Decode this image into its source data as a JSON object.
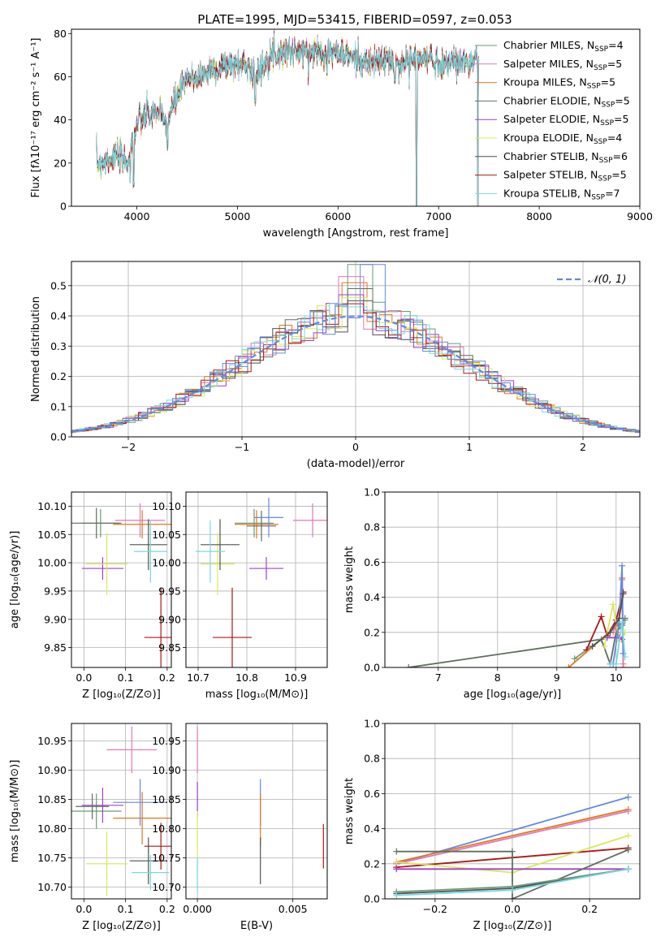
{
  "figure_title": "PLATE=1995, MJD=53415, FIBERID=0597, z=0.053",
  "colors": {
    "Chabrier MILES": "#6a9a78",
    "Salpeter MILES": "#e07ab4",
    "Kroupa MILES": "#e0781e",
    "Chabrier ELODIE": "#5f6f5f",
    "Salpeter ELODIE": "#a040c8",
    "Kroupa ELODIE": "#d8e85a",
    "Chabrier STELIB": "#505050",
    "Salpeter STELIB": "#aa1818",
    "Kroupa STELIB": "#7ad8e0",
    "blue": "#6688dd",
    "grid": "#b0b0b0"
  },
  "chart_data": [
    {
      "id": "spectrum",
      "type": "line",
      "xlabel": "wavelength [Angstrom, rest frame]",
      "ylabel": "Flux [fλ10⁻¹⁷ erg cm⁻² s⁻¹ A⁻¹]",
      "xlim": [
        3350,
        9000
      ],
      "ylim": [
        0,
        82
      ],
      "xticks": [
        4000,
        5000,
        6000,
        7000,
        8000,
        9000
      ],
      "yticks": [
        0,
        20,
        40,
        60,
        80
      ],
      "wavelength_range": [
        3600,
        7400
      ],
      "continuum": [
        [
          3600,
          20
        ],
        [
          3800,
          23
        ],
        [
          3900,
          20
        ],
        [
          4000,
          38
        ],
        [
          4100,
          42
        ],
        [
          4200,
          44
        ],
        [
          4300,
          38
        ],
        [
          4400,
          52
        ],
        [
          4500,
          58
        ],
        [
          4600,
          60
        ],
        [
          4800,
          64
        ],
        [
          5000,
          66
        ],
        [
          5100,
          66
        ],
        [
          5200,
          60
        ],
        [
          5300,
          70
        ],
        [
          5500,
          72
        ],
        [
          5700,
          71
        ],
        [
          5800,
          72
        ],
        [
          6000,
          71
        ],
        [
          6200,
          68
        ],
        [
          6300,
          66
        ],
        [
          6500,
          68
        ],
        [
          6560,
          64
        ],
        [
          6700,
          68
        ],
        [
          6900,
          69
        ],
        [
          7000,
          66
        ],
        [
          7200,
          67
        ],
        [
          7400,
          67
        ]
      ],
      "dips": [
        [
          3934,
          12
        ],
        [
          3968,
          10
        ],
        [
          4305,
          28
        ],
        [
          5175,
          48
        ],
        [
          5890,
          62
        ],
        [
          6563,
          58
        ],
        [
          6780,
          0
        ],
        [
          7390,
          0
        ]
      ],
      "legend_position": "upper right",
      "series": [
        {
          "name": "Chabrier MILES",
          "nssp": "4"
        },
        {
          "name": "Salpeter MILES",
          "nssp": "5"
        },
        {
          "name": "Kroupa MILES",
          "nssp": "5"
        },
        {
          "name": "Chabrier ELODIE",
          "nssp": "5"
        },
        {
          "name": "Salpeter ELODIE",
          "nssp": "5"
        },
        {
          "name": "Kroupa ELODIE",
          "nssp": "4"
        },
        {
          "name": "Chabrier STELIB",
          "nssp": "6"
        },
        {
          "name": "Salpeter STELIB",
          "nssp": "5"
        },
        {
          "name": "Kroupa STELIB",
          "nssp": "7"
        }
      ]
    },
    {
      "id": "residuals",
      "type": "histogram",
      "xlabel": "(data-model)/error",
      "ylabel": "Normed distribution",
      "xlim": [
        -2.5,
        2.5
      ],
      "ylim": [
        0,
        0.58
      ],
      "xticks": [
        -2,
        -1,
        0,
        1,
        2
      ],
      "yticks": [
        0.0,
        0.1,
        0.2,
        0.3,
        0.4,
        0.5
      ],
      "bin_width": 0.11,
      "reference_curve": {
        "label": "𝒩(0, 1)",
        "mean": 0,
        "sigma": 1
      },
      "peak_values": [
        0.57,
        0.53,
        0.51,
        0.49,
        0.47,
        0.46,
        0.45,
        0.44,
        0.43
      ]
    },
    {
      "id": "age_vs_Z",
      "type": "errorbar",
      "xlabel": "Z [log₁₀(Z/Z⊙)]",
      "ylabel": "age  [log₁₀(age/yr)]",
      "xlim": [
        -0.03,
        0.21
      ],
      "ylim": [
        9.815,
        10.125
      ],
      "xticks": [
        0.0,
        0.1,
        0.2
      ],
      "yticks": [
        9.85,
        9.9,
        9.95,
        10.0,
        10.05,
        10.1
      ],
      "points": [
        {
          "series": "Chabrier MILES",
          "x": 0.04,
          "xerr": 0.045,
          "y": 10.07,
          "yerr": 0.025
        },
        {
          "series": "Salpeter MILES",
          "x": 0.135,
          "xerr": 0.06,
          "y": 10.075,
          "yerr": 0.03
        },
        {
          "series": "Kroupa MILES",
          "x": 0.14,
          "xerr": 0.07,
          "y": 10.068,
          "yerr": 0.025
        },
        {
          "series": "Chabrier ELODIE",
          "x": 0.03,
          "xerr": 0.06,
          "y": 10.07,
          "yerr": 0.027
        },
        {
          "series": "Salpeter ELODIE",
          "x": 0.045,
          "xerr": 0.05,
          "y": 9.99,
          "yerr": 0.02
        },
        {
          "series": "Kroupa ELODIE",
          "x": 0.055,
          "xerr": 0.05,
          "y": 9.998,
          "yerr": 0.055
        },
        {
          "series": "Chabrier STELIB",
          "x": 0.155,
          "xerr": 0.045,
          "y": 10.032,
          "yerr": 0.045
        },
        {
          "series": "Salpeter STELIB",
          "x": 0.185,
          "xerr": 0.04,
          "y": 9.868,
          "yerr": 0.088
        },
        {
          "series": "Kroupa STELIB",
          "x": 0.16,
          "xerr": 0.04,
          "y": 10.02,
          "yerr": 0.055
        }
      ]
    },
    {
      "id": "age_vs_mass",
      "type": "errorbar",
      "xlabel": "mass [log₁₀(M/M⊙)]",
      "ylabel": "",
      "xlim": [
        10.675,
        10.965
      ],
      "ylim": [
        9.815,
        10.125
      ],
      "xticks": [
        10.7,
        10.8,
        10.9
      ],
      "yticks": [
        9.85,
        9.9,
        9.95,
        10.0,
        10.05,
        10.1
      ],
      "points": [
        {
          "series": "Chabrier MILES",
          "x": 10.815,
          "xerr": 0.04,
          "y": 10.07,
          "yerr": 0.025
        },
        {
          "series": "Salpeter MILES",
          "x": 10.935,
          "xerr": 0.04,
          "y": 10.075,
          "yerr": 0.03
        },
        {
          "series": "Kroupa MILES",
          "x": 10.82,
          "xerr": 0.045,
          "y": 10.068,
          "yerr": 0.025
        },
        {
          "series": "Chabrier ELODIE",
          "x": 10.83,
          "xerr": 0.03,
          "y": 10.065,
          "yerr": 0.027
        },
        {
          "series": "Salpeter ELODIE",
          "x": 10.84,
          "xerr": 0.035,
          "y": 9.99,
          "yerr": 0.02
        },
        {
          "series": "Kroupa ELODIE",
          "x": 10.74,
          "xerr": 0.035,
          "y": 9.998,
          "yerr": 0.055
        },
        {
          "series": "Chabrier STELIB",
          "x": 10.745,
          "xerr": 0.04,
          "y": 10.032,
          "yerr": 0.045
        },
        {
          "series": "Salpeter STELIB",
          "x": 10.77,
          "xerr": 0.04,
          "y": 9.868,
          "yerr": 0.088
        },
        {
          "series": "Kroupa STELIB",
          "x": 10.725,
          "xerr": 0.03,
          "y": 10.02,
          "yerr": 0.055
        },
        {
          "series": "blue",
          "x": 10.845,
          "xerr": 0.03,
          "y": 10.08,
          "yerr": 0.035
        }
      ]
    },
    {
      "id": "weight_vs_age",
      "type": "line",
      "xlabel": "age  [log₁₀(age/yr)]",
      "ylabel": "mass weight",
      "xlim": [
        6.1,
        10.4
      ],
      "ylim": [
        0.0,
        1.0
      ],
      "xticks": [
        7,
        8,
        9,
        10
      ],
      "yticks": [
        0.0,
        0.2,
        0.4,
        0.6,
        0.8,
        1.0
      ],
      "series": [
        {
          "series": "Chabrier ELODIE",
          "x": [
            6.5,
            9.75,
            9.9,
            10.0,
            10.1,
            10.15
          ],
          "y": [
            0.0,
            0.16,
            0.02,
            0.2,
            0.24,
            0.28
          ]
        },
        {
          "series": "Chabrier MILES",
          "x": [
            9.3,
            9.75,
            9.95,
            10.1,
            10.15
          ],
          "y": [
            0.05,
            0.16,
            0.22,
            0.25,
            0.27
          ]
        },
        {
          "series": "Salpeter STELIB",
          "x": [
            9.5,
            9.75,
            9.85,
            10.0,
            10.12
          ],
          "y": [
            0.1,
            0.29,
            0.18,
            0.27,
            0.43
          ]
        },
        {
          "series": "Kroupa ELODIE",
          "x": [
            9.8,
            9.95,
            10.05,
            10.15
          ],
          "y": [
            0.12,
            0.36,
            0.15,
            0.2
          ]
        },
        {
          "series": "Salpeter ELODIE",
          "x": [
            9.85,
            10.05,
            10.1
          ],
          "y": [
            0.17,
            0.17,
            0.16
          ]
        },
        {
          "series": "Kroupa MILES",
          "x": [
            9.2,
            9.95,
            10.05,
            10.1,
            10.12
          ],
          "y": [
            0.0,
            0.22,
            0.25,
            0.51,
            0.0
          ]
        },
        {
          "series": "Salpeter MILES",
          "x": [
            9.95,
            10.05,
            10.1,
            10.12
          ],
          "y": [
            0.2,
            0.28,
            0.5,
            0.02
          ]
        },
        {
          "series": "blue",
          "x": [
            9.95,
            10.05,
            10.1,
            10.12
          ],
          "y": [
            0.02,
            0.25,
            0.58,
            0.08
          ]
        },
        {
          "series": "Kroupa STELIB",
          "x": [
            9.9,
            10.0,
            10.1,
            10.15
          ],
          "y": [
            0.02,
            0.02,
            0.26,
            0.06
          ]
        },
        {
          "series": "Chabrier STELIB",
          "x": [
            9.6,
            9.9,
            10.05,
            10.12
          ],
          "y": [
            0.12,
            0.2,
            0.28,
            0.42
          ]
        }
      ]
    },
    {
      "id": "mass_vs_Z",
      "type": "errorbar",
      "xlabel": "Z [log₁₀(Z/Z⊙)]",
      "ylabel": "mass [log₁₀(M/M⊙)]",
      "xlim": [
        -0.03,
        0.21
      ],
      "ylim": [
        10.68,
        10.98
      ],
      "xticks": [
        0.0,
        0.1,
        0.2
      ],
      "yticks": [
        10.7,
        10.75,
        10.8,
        10.85,
        10.9,
        10.95
      ],
      "points": [
        {
          "series": "Chabrier MILES",
          "x": 0.03,
          "xerr": 0.06,
          "y": 10.83,
          "yerr": 0.03
        },
        {
          "series": "Salpeter MILES",
          "x": 0.115,
          "xerr": 0.06,
          "y": 10.935,
          "yerr": 0.04
        },
        {
          "series": "Kroupa MILES",
          "x": 0.14,
          "xerr": 0.07,
          "y": 10.818,
          "yerr": 0.045
        },
        {
          "series": "Chabrier ELODIE",
          "x": 0.02,
          "xerr": 0.04,
          "y": 10.838,
          "yerr": 0.022
        },
        {
          "series": "Salpeter ELODIE",
          "x": 0.045,
          "xerr": 0.05,
          "y": 10.84,
          "yerr": 0.03
        },
        {
          "series": "Kroupa ELODIE",
          "x": 0.055,
          "xerr": 0.05,
          "y": 10.74,
          "yerr": 0.055
        },
        {
          "series": "Chabrier STELIB",
          "x": 0.155,
          "xerr": 0.045,
          "y": 10.745,
          "yerr": 0.04
        },
        {
          "series": "Salpeter STELIB",
          "x": 0.185,
          "xerr": 0.04,
          "y": 10.77,
          "yerr": 0.04
        },
        {
          "series": "Kroupa STELIB",
          "x": 0.16,
          "xerr": 0.045,
          "y": 10.725,
          "yerr": 0.03
        },
        {
          "series": "blue",
          "x": 0.135,
          "xerr": 0.065,
          "y": 10.845,
          "yerr": 0.04
        }
      ]
    },
    {
      "id": "mass_vs_ebv",
      "type": "errorbar",
      "xlabel": "E(B-V)",
      "ylabel": "",
      "xlim": [
        -0.0006,
        0.0068
      ],
      "ylim": [
        10.68,
        10.98
      ],
      "xticks": [
        0.0,
        0.005
      ],
      "xticklabels": [
        "0.000",
        "0.005"
      ],
      "yticks": [
        10.7,
        10.75,
        10.8,
        10.85,
        10.9,
        10.95
      ],
      "points": [
        {
          "series": "Salpeter MILES",
          "x": 0.0,
          "xerr": 0.0,
          "y": 10.935,
          "yerr": 0.04
        },
        {
          "series": "Salpeter ELODIE",
          "x": 0.0,
          "xerr": 0.0,
          "y": 10.85,
          "yerr": 0.03
        },
        {
          "series": "Kroupa ELODIE",
          "x": 0.0,
          "xerr": 0.0,
          "y": 10.78,
          "yerr": 0.05
        },
        {
          "series": "Kroupa STELIB",
          "x": 0.0,
          "xerr": 0.0,
          "y": 10.72,
          "yerr": 0.03
        },
        {
          "series": "blue",
          "x": 0.0033,
          "xerr": 0.0,
          "y": 10.845,
          "yerr": 0.04
        },
        {
          "series": "Kroupa MILES",
          "x": 0.0033,
          "xerr": 0.0,
          "y": 10.815,
          "yerr": 0.045
        },
        {
          "series": "Chabrier STELIB",
          "x": 0.0033,
          "xerr": 0.0,
          "y": 10.745,
          "yerr": 0.04
        },
        {
          "series": "Salpeter STELIB",
          "x": 0.0066,
          "xerr": 0.0,
          "y": 10.77,
          "yerr": 0.038
        }
      ]
    },
    {
      "id": "weight_vs_Z",
      "type": "line",
      "xlabel": "Z [log₁₀(Z/Z⊙)]",
      "ylabel": "mass weight",
      "xlim": [
        -0.33,
        0.33
      ],
      "ylim": [
        0.0,
        1.0
      ],
      "xticks": [
        -0.2,
        0.0,
        0.2
      ],
      "xticklabels": [
        "−0.2",
        "0.0",
        "0.2"
      ],
      "yticks": [
        0.0,
        0.2,
        0.4,
        0.6,
        0.8,
        1.0
      ],
      "series": [
        {
          "series": "blue",
          "x": [
            -0.3,
            0.3
          ],
          "y": [
            0.2,
            0.58
          ]
        },
        {
          "series": "Kroupa MILES",
          "x": [
            -0.3,
            0.3
          ],
          "y": [
            0.21,
            0.51
          ]
        },
        {
          "series": "Salpeter MILES",
          "x": [
            -0.3,
            0.3
          ],
          "y": [
            0.2,
            0.5
          ]
        },
        {
          "series": "Salpeter STELIB",
          "x": [
            -0.3,
            0.3
          ],
          "y": [
            0.18,
            0.29
          ]
        },
        {
          "series": "Kroupa ELODIE",
          "x": [
            -0.3,
            0.0,
            0.3
          ],
          "y": [
            0.21,
            0.15,
            0.36
          ]
        },
        {
          "series": "Salpeter ELODIE",
          "x": [
            -0.3,
            0.3
          ],
          "y": [
            0.17,
            0.17
          ]
        },
        {
          "series": "Chabrier ELODIE",
          "x": [
            -0.3,
            0.0,
            0.0,
            0.3
          ],
          "y": [
            0.27,
            0.27,
            0.0,
            0.28
          ]
        },
        {
          "series": "Chabrier STELIB",
          "x": [
            -0.3,
            0.0,
            0.3
          ],
          "y": [
            0.03,
            0.06,
            0.17
          ]
        },
        {
          "series": "Chabrier MILES",
          "x": [
            -0.3,
            0.0,
            0.3
          ],
          "y": [
            0.04,
            0.07,
            0.17
          ]
        },
        {
          "series": "Kroupa STELIB",
          "x": [
            -0.3,
            0.0,
            0.3
          ],
          "y": [
            0.02,
            0.05,
            0.17
          ]
        }
      ]
    }
  ]
}
